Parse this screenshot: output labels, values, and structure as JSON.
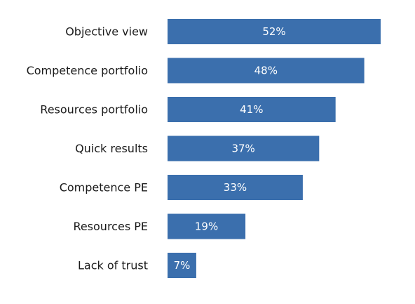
{
  "chart_data": {
    "type": "bar",
    "orientation": "horizontal",
    "title": "",
    "xlabel": "",
    "ylabel": "",
    "categories": [
      "Objective view",
      "Competence portfolio",
      "Resources portfolio",
      "Quick results",
      "Competence PE",
      "Resources PE",
      "Lack of trust"
    ],
    "values": [
      52,
      48,
      41,
      37,
      33,
      19,
      7
    ],
    "value_labels": [
      "52%",
      "48%",
      "41%",
      "37%",
      "33%",
      "19%",
      "7%"
    ],
    "unit": "%",
    "xlim": [
      0,
      52
    ],
    "grid": false,
    "legend": "none",
    "colors": {
      "bar": "#3b6fad",
      "value_text": "#ffffff",
      "category_text": "#1a1a1a"
    }
  }
}
